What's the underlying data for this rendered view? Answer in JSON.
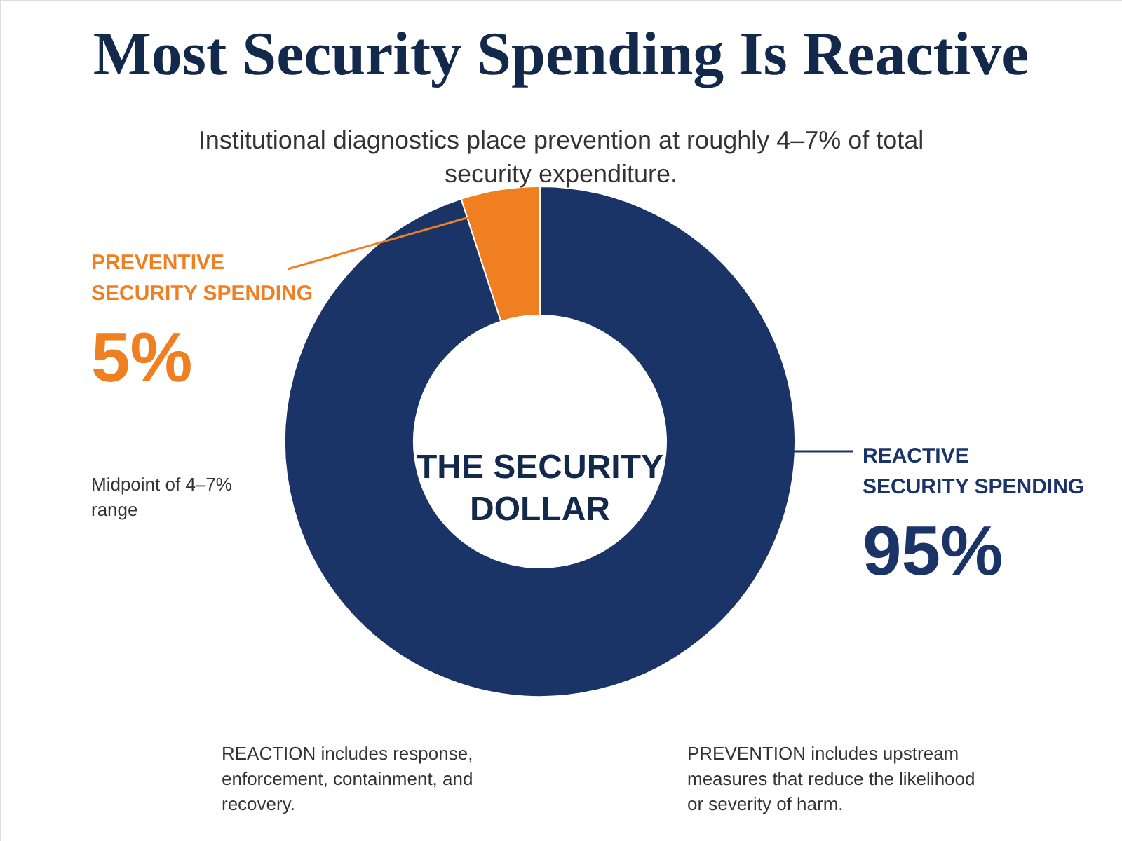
{
  "chart_data": {
    "type": "donut",
    "title": "Most Security Spending Is Reactive",
    "subtitle": "Institutional diagnostics place prevention at roughly 4–7% of total security expenditure.",
    "categories": [
      "PREVENTIVE\nSECURITY SPENDING",
      "REACTIVE\nSECURITY SPENDING"
    ],
    "values": [
      5,
      95
    ],
    "colors": [
      "#f07f22",
      "#1b3468"
    ],
    "value_labels": [
      "5%",
      "95%"
    ],
    "annotations": [
      "Midpoint of 4–7% range",
      "THE SECURITY DOLLAR",
      "REACTION includes response, enforcement, containment, and recovery.",
      "PREVENTION includes upstream measures that reduce the likelihood or severity of harm."
    ]
  }
}
